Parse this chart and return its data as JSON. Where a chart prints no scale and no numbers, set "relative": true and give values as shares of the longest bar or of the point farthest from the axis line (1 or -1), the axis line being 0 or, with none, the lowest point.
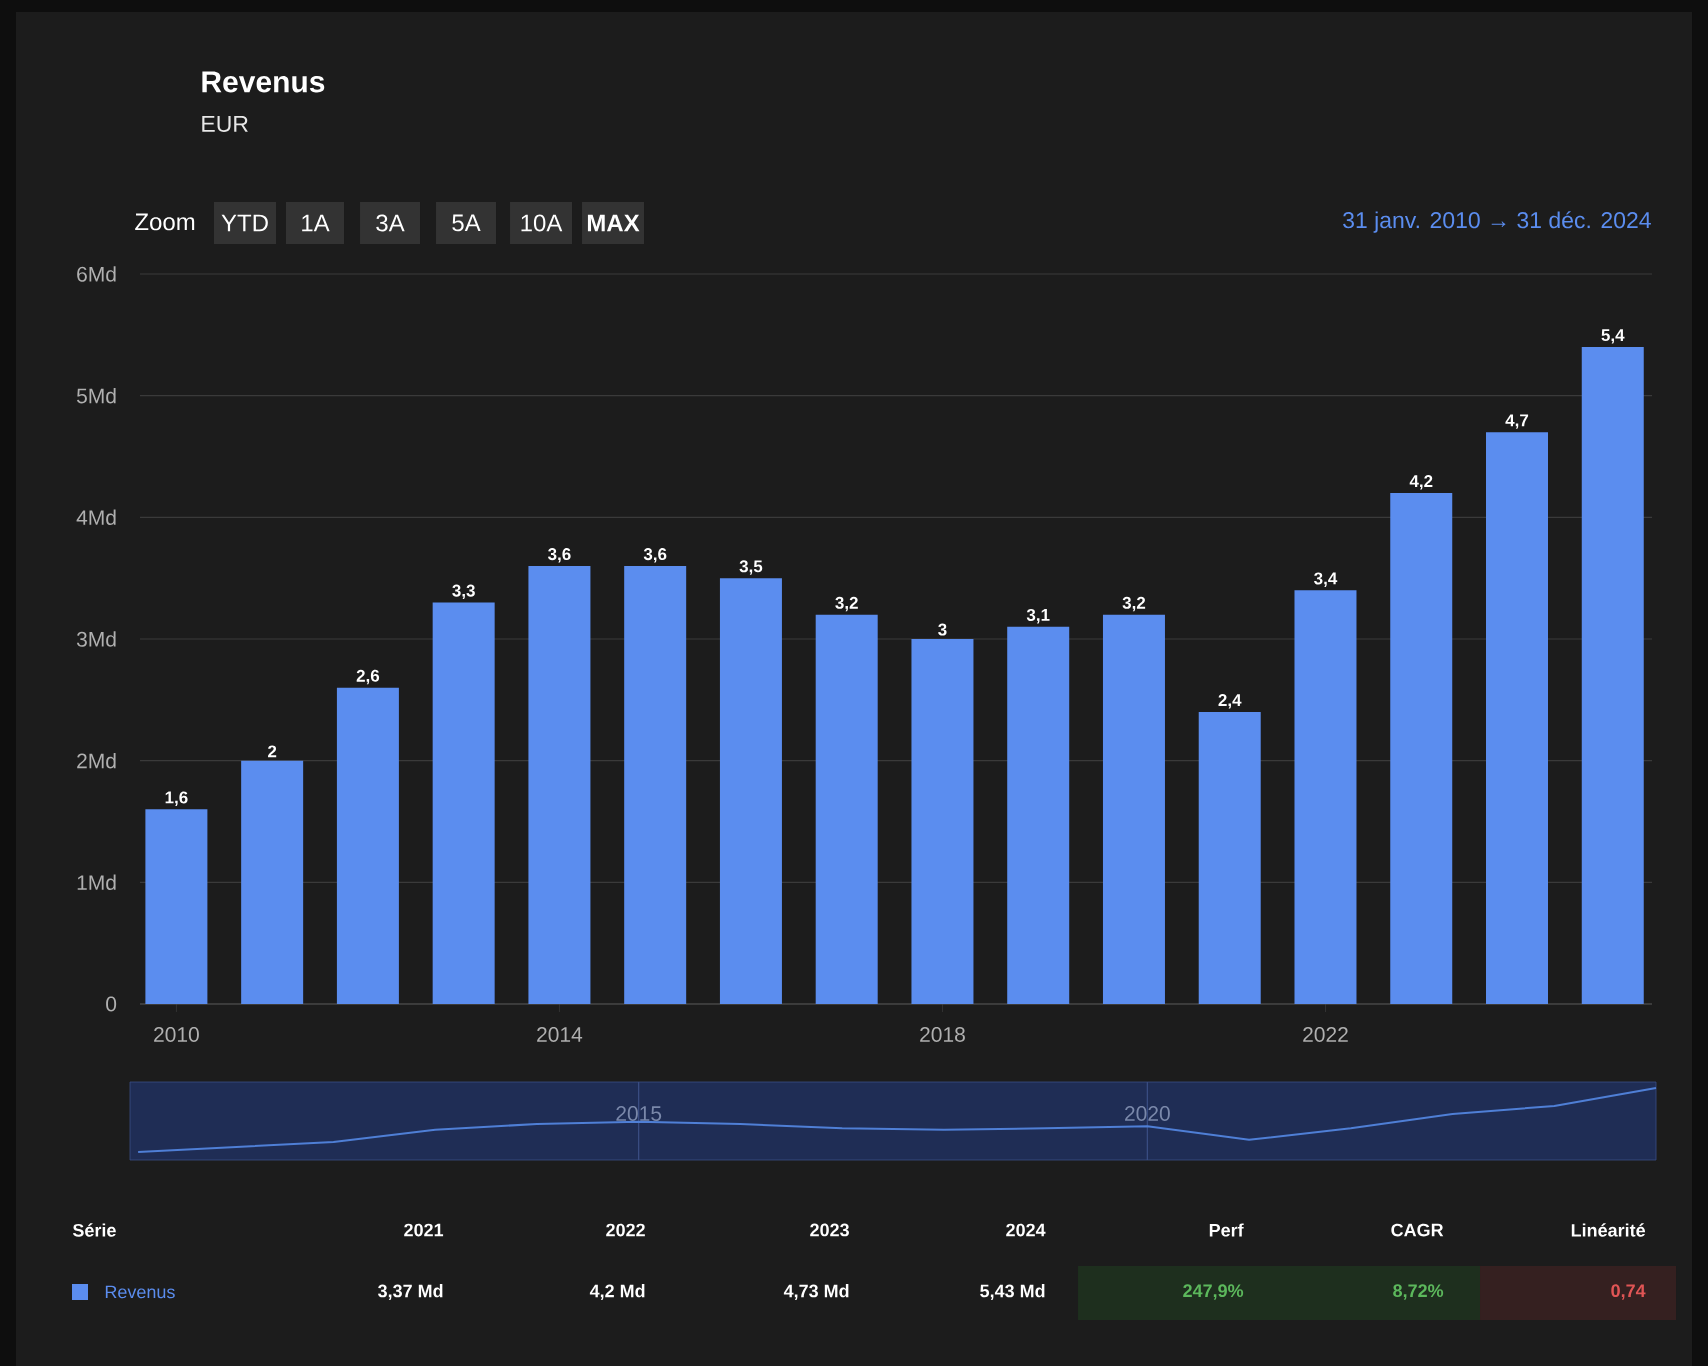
{
  "chart_data": [
    {
      "type": "bar",
      "title": "Revenus",
      "subtitle": "EUR",
      "x": [
        "2009-12-31",
        "2010-12-31",
        "2011-12-31",
        "2012-12-31",
        "2013-12-31",
        "2014-12-31",
        "2015-12-31",
        "2016-12-31",
        "2017-12-31",
        "2018-12-31",
        "2019-12-31",
        "2020-12-31",
        "2021-12-31",
        "2022-12-31",
        "2023-12-31",
        "2024-12-31"
      ],
      "values": [
        1.6,
        2,
        2.6,
        3.3,
        3.6,
        3.6,
        3.5,
        3.2,
        3,
        3.1,
        3.2,
        2.4,
        3.4,
        4.2,
        4.7,
        5.4
      ],
      "value_labels": [
        "1,6",
        "2",
        "2,6",
        "3,3",
        "3,6",
        "3,6",
        "3,5",
        "3,2",
        "3",
        "3,1",
        "3,2",
        "2,4",
        "3,4",
        "4,2",
        "4,7",
        "5,4"
      ],
      "color": "#5b8def",
      "xlim": [
        "2009-08-15",
        "2025-06-01"
      ],
      "xticks": [
        "2010",
        "2014",
        "2018",
        "2022"
      ],
      "ylim": [
        0,
        6
      ],
      "yticks": [
        0,
        {
          "value": 1,
          "label": "1Md"
        },
        {
          "value": 2,
          "label": "2Md"
        },
        {
          "value": 3,
          "label": "3Md"
        },
        {
          "value": 4,
          "label": "4Md"
        },
        {
          "value": 5,
          "label": "5Md"
        },
        {
          "value": 6,
          "label": "6Md"
        }
      ],
      "grid": "y",
      "annotations": [
        "Zoom",
        "YTD",
        "1A",
        "3A",
        "5A",
        "10A",
        "MAX",
        "31 janv. 2010 → 31 déc. 2024",
        "Série",
        "2021",
        "2022",
        "2023",
        "2024",
        "Perf",
        "CAGR",
        "Linéarité",
        "Revenus",
        "3,37 Md",
        "4,2 Md",
        "4,73 Md",
        "5,43 Md",
        "247,9%",
        "8,72%",
        "0,74"
      ]
    },
    {
      "type": "line",
      "relative": true,
      "x": [
        "2010-01-31",
        "2012-01-01",
        "2013-01-01",
        "2014-01-01",
        "2015-01-01",
        "2016-01-01",
        "2017-01-01",
        "2018-01-01",
        "2019-01-01",
        "2020-01-01",
        "2021-01-01",
        "2022-01-01",
        "2023-01-01",
        "2024-01-01",
        "2025-01-01"
      ],
      "values": [
        0.11,
        0.25,
        0.42,
        0.5,
        0.53,
        0.5,
        0.44,
        0.42,
        0.44,
        0.47,
        0.28,
        0.44,
        0.64,
        0.75,
        1.0
      ],
      "color": "#4f7fd6",
      "xlim": [
        "2010-01-01",
        "2025-01-01"
      ],
      "xticks": [
        "2015",
        "2020"
      ],
      "grid": "x"
    }
  ]
}
